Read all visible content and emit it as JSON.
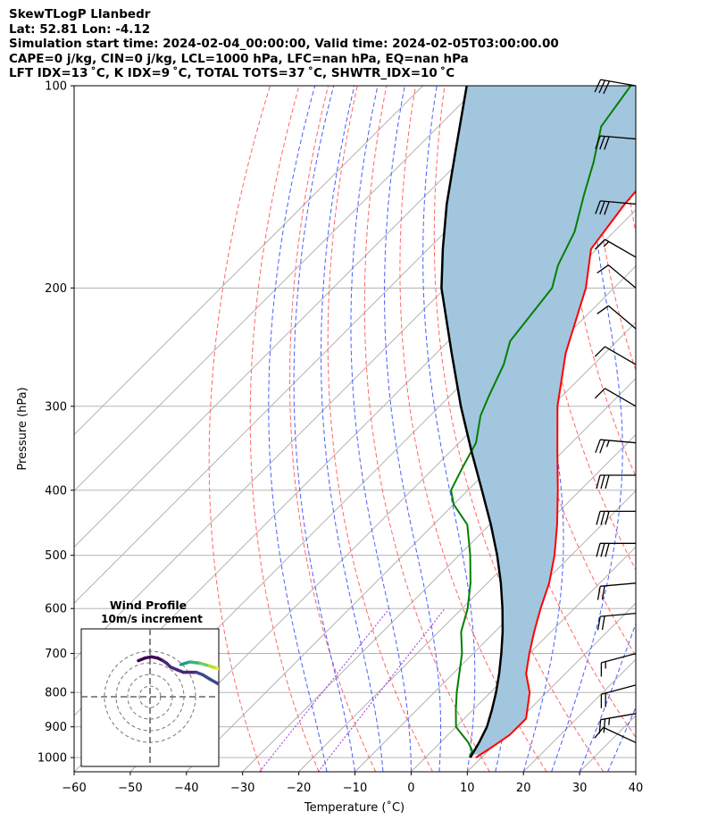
{
  "header": {
    "line1": "SkewTLogP Llanbedr",
    "line2": "Lat: 52.81   Lon: -4.12",
    "line3": "Simulation start time: 2024-02-04_00:00:00, Valid time: 2024-02-05T03:00:00.00",
    "line4": "CAPE=0 j/kg, CIN=0 j/kg, LCL=1000 hPa, LFC=nan hPa, EQ=nan hPa",
    "line5": "LFT IDX=13 ˚C, K IDX=9 ˚C, TOTAL TOTS=37 ˚C, SHWTR_IDX=10 ˚C"
  },
  "inset": {
    "title": "Wind Profile",
    "subtitle": "10m/s increment"
  },
  "colors": {
    "temperature": "#ff0000",
    "dewpoint": "#008000",
    "parcel": "#000000",
    "cape_fill": "#a3c6df",
    "dry_adiabat": "#ff6666",
    "moist_adiabat": "#4a5cff",
    "isotherm": "#aaaaaa",
    "mixing_ratio": "#9b30d9"
  },
  "chart_data": {
    "type": "line",
    "title": "",
    "xlabel": "Temperature (˚C)",
    "ylabel": "Pressure (hPa)",
    "xlim": [
      -60,
      40
    ],
    "ylim": [
      1050,
      100
    ],
    "y_scale": "log",
    "skew": true,
    "grid": true,
    "x_ticks": [
      -60,
      -50,
      -40,
      -30,
      -20,
      -10,
      0,
      10,
      20,
      30,
      40
    ],
    "x_tick_labels": [
      "−60",
      "−50",
      "−40",
      "−30",
      "−20",
      "−10",
      "0",
      "10",
      "20",
      "30",
      "40"
    ],
    "y_ticks": [
      1000,
      900,
      800,
      700,
      600,
      500,
      400,
      300,
      200,
      100
    ],
    "y_tick_labels": [
      "1000",
      "900",
      "800",
      "700",
      "600",
      "500",
      "400",
      "300",
      "200",
      "100"
    ],
    "series": [
      {
        "key": "temperature",
        "p": [
          1000,
          965,
          925,
          875,
          800,
          750,
          700,
          650,
          600,
          550,
          500,
          450,
          400,
          350,
          300,
          250,
          200,
          175,
          150,
          130,
          115,
          100
        ],
        "t": [
          9,
          10,
          11,
          11,
          7,
          3,
          0,
          -3,
          -6,
          -9,
          -13,
          -18,
          -24,
          -31,
          -39,
          -47,
          -55,
          -61,
          -63,
          -64,
          -63,
          -65
        ]
      },
      {
        "key": "dewpoint",
        "p": [
          1000,
          975,
          950,
          900,
          850,
          800,
          700,
          650,
          600,
          550,
          500,
          450,
          420,
          400,
          370,
          340,
          310,
          290,
          260,
          240,
          200,
          185,
          165,
          145,
          130,
          115,
          100
        ],
        "t": [
          8,
          7,
          5,
          0,
          -3,
          -6,
          -12,
          -16,
          -19,
          -23,
          -28,
          -34,
          -40,
          -43,
          -45,
          -47,
          -51,
          -53,
          -56,
          -59,
          -61,
          -64,
          -67,
          -72,
          -76,
          -81,
          -83
        ]
      },
      {
        "key": "parcel",
        "p": [
          1000,
          950,
          900,
          850,
          800,
          750,
          700,
          650,
          600,
          550,
          500,
          450,
          400,
          350,
          300,
          250,
          200,
          175,
          150,
          125,
          100
        ],
        "t": [
          8.0,
          6.9,
          5.5,
          3.4,
          1.0,
          -1.8,
          -5.0,
          -8.6,
          -12.8,
          -17.6,
          -23.2,
          -29.8,
          -37.5,
          -46.3,
          -56.2,
          -67.3,
          -80.7,
          -87.4,
          -94.7,
          -102.6,
          -112.2
        ]
      }
    ],
    "wind_barbs": {
      "p": [
        100,
        120,
        150,
        180,
        200,
        230,
        260,
        300,
        340,
        380,
        430,
        480,
        550,
        610,
        700,
        780,
        860,
        950
      ],
      "speed_kt": [
        30,
        30,
        30,
        15,
        10,
        10,
        10,
        10,
        25,
        30,
        30,
        30,
        20,
        20,
        15,
        20,
        25,
        10
      ],
      "dir_deg": [
        280,
        275,
        275,
        300,
        310,
        310,
        300,
        300,
        275,
        270,
        270,
        270,
        265,
        265,
        255,
        255,
        260,
        295
      ]
    },
    "hodograph": {
      "u": [
        -0.9,
        -0.4,
        0.1,
        0.6,
        1.0,
        1.3,
        1.6,
        2.1,
        2.6,
        3.1,
        3.6,
        4.1,
        4.6,
        5.3,
        6.1
      ],
      "v": [
        1.0,
        1.2,
        1.3,
        1.2,
        1.0,
        0.8,
        0.5,
        0.3,
        0.1,
        0.1,
        0.1,
        -0.1,
        -0.4,
        -0.8,
        -1.2
      ],
      "u_upper": [
        2.4,
        3.1,
        3.9,
        4.6,
        5.2,
        5.9
      ],
      "v_upper": [
        0.7,
        0.9,
        0.8,
        0.6,
        0.4,
        0.2
      ],
      "colormap": "viridis",
      "ring_increment_ms": 10
    }
  }
}
